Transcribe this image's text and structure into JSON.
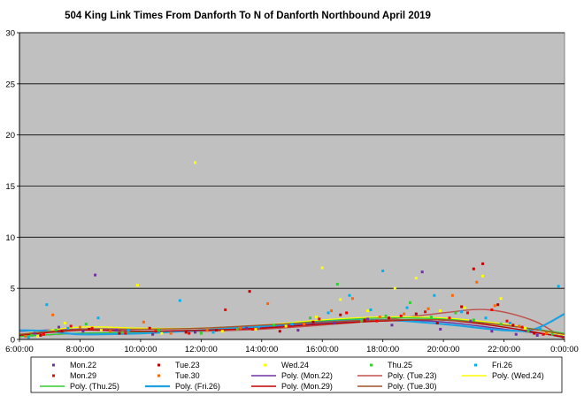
{
  "chart_data": {
    "type": "scatter",
    "title": "504 King Link Times From Danforth  To N of Danforth Northbound  April 2019",
    "xlabel": "",
    "ylabel": "",
    "xlim": [
      6,
      24
    ],
    "ylim": [
      0,
      30
    ],
    "x_ticks": [
      6,
      8,
      10,
      12,
      14,
      16,
      18,
      20,
      22,
      24
    ],
    "x_tick_labels": [
      "6:00:00",
      "8:00:00",
      "10:00:00",
      "12:00:00",
      "14:00:00",
      "16:00:00",
      "18:00:00",
      "20:00:00",
      "22:00:00",
      "0:00:00"
    ],
    "y_ticks": [
      0,
      5,
      10,
      15,
      20,
      25,
      30
    ],
    "y_tick_labels": [
      "0",
      "5",
      "10",
      "15",
      "20",
      "25",
      "30"
    ],
    "grid": "horizontal",
    "plot_background": "#c0c0c0",
    "legend_position": "bottom",
    "series": [
      {
        "name": "Mon.22",
        "kind": "marker",
        "color": "#7030a0",
        "points": [
          [
            6.5,
            0.6
          ],
          [
            7.3,
            1.2
          ],
          [
            8.1,
            0.8
          ],
          [
            8.5,
            6.3
          ],
          [
            9.2,
            0.9
          ],
          [
            10.4,
            0.5
          ],
          [
            11.8,
            0.7
          ],
          [
            13.5,
            1.1
          ],
          [
            15.2,
            0.9
          ],
          [
            16.4,
            1.6
          ],
          [
            17.5,
            2.0
          ],
          [
            18.3,
            1.4
          ],
          [
            19.3,
            6.6
          ],
          [
            19.9,
            1.0
          ],
          [
            20.9,
            1.8
          ],
          [
            21.6,
            0.8
          ],
          [
            22.4,
            0.5
          ],
          [
            23.1,
            0.4
          ]
        ]
      },
      {
        "name": "Tue.23",
        "kind": "marker",
        "color": "#c00000",
        "points": [
          [
            6.7,
            0.4
          ],
          [
            7.4,
            0.8
          ],
          [
            8.3,
            1.0
          ],
          [
            9.3,
            0.6
          ],
          [
            10.3,
            1.1
          ],
          [
            11.5,
            0.7
          ],
          [
            12.5,
            0.9
          ],
          [
            13.6,
            4.7
          ],
          [
            14.6,
            0.8
          ],
          [
            15.7,
            1.7
          ],
          [
            16.6,
            2.4
          ],
          [
            17.4,
            1.9
          ],
          [
            18.2,
            2.1
          ],
          [
            19.1,
            2.5
          ],
          [
            19.8,
            1.6
          ],
          [
            20.6,
            3.2
          ],
          [
            21.0,
            6.9
          ],
          [
            21.3,
            7.4
          ],
          [
            21.8,
            3.4
          ],
          [
            22.3,
            1.4
          ],
          [
            23.0,
            0.6
          ]
        ]
      },
      {
        "name": "Wed.24",
        "kind": "marker",
        "color": "#ffff00",
        "points": [
          [
            6.6,
            0.3
          ],
          [
            7.5,
            1.6
          ],
          [
            8.7,
            0.9
          ],
          [
            9.9,
            5.3
          ],
          [
            10.7,
            0.6
          ],
          [
            11.8,
            17.3
          ],
          [
            12.7,
            0.8
          ],
          [
            13.8,
            1.0
          ],
          [
            14.8,
            1.3
          ],
          [
            15.8,
            2.2
          ],
          [
            16.0,
            7.0
          ],
          [
            16.6,
            3.9
          ],
          [
            17.5,
            2.8
          ],
          [
            18.4,
            5.0
          ],
          [
            19.1,
            6.0
          ],
          [
            19.9,
            2.8
          ],
          [
            20.7,
            3.1
          ],
          [
            21.3,
            6.2
          ],
          [
            21.9,
            4.0
          ],
          [
            22.7,
            1.1
          ]
        ]
      },
      {
        "name": "Thu.25",
        "kind": "marker",
        "color": "#33cc33",
        "points": [
          [
            6.4,
            0.4
          ],
          [
            7.2,
            0.9
          ],
          [
            8.2,
            1.5
          ],
          [
            9.4,
            0.7
          ],
          [
            10.6,
            0.9
          ],
          [
            12.0,
            0.6
          ],
          [
            13.2,
            1.0
          ],
          [
            14.4,
            1.4
          ],
          [
            15.6,
            2.1
          ],
          [
            16.5,
            5.4
          ],
          [
            17.3,
            1.8
          ],
          [
            18.1,
            2.3
          ],
          [
            18.9,
            3.6
          ],
          [
            19.6,
            2.2
          ],
          [
            20.4,
            2.6
          ],
          [
            21.0,
            1.9
          ],
          [
            21.9,
            1.5
          ],
          [
            22.8,
            0.8
          ],
          [
            23.6,
            0.5
          ]
        ]
      },
      {
        "name": "Fri.26",
        "kind": "marker",
        "color": "#00b0f0",
        "points": [
          [
            6.3,
            0.2
          ],
          [
            6.9,
            3.4
          ],
          [
            7.6,
            1.1
          ],
          [
            8.6,
            2.1
          ],
          [
            9.6,
            0.9
          ],
          [
            11.3,
            3.8
          ],
          [
            12.4,
            0.7
          ],
          [
            13.9,
            1.2
          ],
          [
            15.0,
            1.5
          ],
          [
            16.2,
            2.6
          ],
          [
            16.9,
            4.3
          ],
          [
            17.6,
            2.9
          ],
          [
            18.0,
            6.7
          ],
          [
            18.8,
            3.1
          ],
          [
            19.7,
            4.3
          ],
          [
            20.6,
            2.7
          ],
          [
            21.4,
            2.1
          ],
          [
            22.2,
            1.6
          ],
          [
            23.2,
            1.0
          ],
          [
            23.8,
            5.2
          ]
        ]
      },
      {
        "name": "Mon.29",
        "kind": "marker",
        "color": "#ff0000",
        "points": [
          [
            6.8,
            0.5
          ],
          [
            7.7,
            1.3
          ],
          [
            8.4,
            1.1
          ],
          [
            9.5,
            0.6
          ],
          [
            10.5,
            0.8
          ],
          [
            11.6,
            0.6
          ],
          [
            12.8,
            2.9
          ],
          [
            13.7,
            1.0
          ],
          [
            14.9,
            1.3
          ],
          [
            15.9,
            2.0
          ],
          [
            16.8,
            2.6
          ],
          [
            17.8,
            1.8
          ],
          [
            18.6,
            2.3
          ],
          [
            19.4,
            2.7
          ],
          [
            20.2,
            2.1
          ],
          [
            20.8,
            2.6
          ],
          [
            21.6,
            2.9
          ],
          [
            22.1,
            1.8
          ],
          [
            22.6,
            1.2
          ],
          [
            23.3,
            0.5
          ]
        ]
      },
      {
        "name": "Tue.30",
        "kind": "marker",
        "color": "#ff6600",
        "points": [
          [
            6.2,
            0.3
          ],
          [
            7.1,
            2.4
          ],
          [
            8.0,
            1.2
          ],
          [
            9.0,
            0.8
          ],
          [
            10.1,
            1.7
          ],
          [
            11.0,
            0.6
          ],
          [
            12.2,
            0.9
          ],
          [
            13.3,
            1.1
          ],
          [
            14.2,
            3.5
          ],
          [
            15.4,
            1.5
          ],
          [
            16.3,
            2.8
          ],
          [
            17.0,
            4.0
          ],
          [
            17.9,
            2.2
          ],
          [
            18.7,
            2.5
          ],
          [
            19.5,
            3.0
          ],
          [
            20.3,
            4.3
          ],
          [
            21.1,
            5.6
          ],
          [
            21.7,
            3.3
          ],
          [
            22.5,
            1.3
          ],
          [
            23.4,
            0.6
          ]
        ]
      },
      {
        "name": "Poly. (Mon.22)",
        "kind": "trend",
        "color": "#7030a0",
        "points": [
          [
            6,
            0.8
          ],
          [
            8,
            1.0
          ],
          [
            10,
            0.8
          ],
          [
            12,
            0.9
          ],
          [
            14,
            1.2
          ],
          [
            16,
            1.6
          ],
          [
            18,
            1.9
          ],
          [
            20,
            1.7
          ],
          [
            22,
            1.0
          ],
          [
            24,
            0.3
          ]
        ]
      },
      {
        "name": "Poly. (Tue.23)",
        "kind": "trend",
        "color": "#c0504d",
        "points": [
          [
            6,
            0.3
          ],
          [
            8,
            0.6
          ],
          [
            10,
            0.7
          ],
          [
            12,
            0.8
          ],
          [
            14,
            1.0
          ],
          [
            16,
            1.4
          ],
          [
            18,
            1.9
          ],
          [
            20,
            2.6
          ],
          [
            21.5,
            2.9
          ],
          [
            23,
            1.8
          ],
          [
            24,
            0.0
          ]
        ]
      },
      {
        "name": "Poly. (Wed.24)",
        "kind": "trend",
        "color": "#ffff00",
        "points": [
          [
            6,
            0.5
          ],
          [
            8,
            1.2
          ],
          [
            10,
            1.1
          ],
          [
            12,
            1.1
          ],
          [
            14,
            1.4
          ],
          [
            16,
            1.9
          ],
          [
            18,
            2.2
          ],
          [
            20,
            2.1
          ],
          [
            22,
            1.5
          ],
          [
            24,
            0.4
          ]
        ]
      },
      {
        "name": "Poly. (Thu.25)",
        "kind": "trend",
        "color": "#33cc33",
        "points": [
          [
            6,
            0.3
          ],
          [
            8,
            0.6
          ],
          [
            10,
            0.7
          ],
          [
            12,
            0.9
          ],
          [
            14,
            1.3
          ],
          [
            16,
            1.8
          ],
          [
            18,
            2.1
          ],
          [
            20,
            2.0
          ],
          [
            22,
            1.4
          ],
          [
            24,
            0.6
          ]
        ]
      },
      {
        "name": "Poly. (Fri.26)",
        "kind": "trend",
        "color": "#1fa0e0",
        "points": [
          [
            6,
            0.9
          ],
          [
            7,
            0.8
          ],
          [
            8,
            0.5
          ],
          [
            10,
            0.6
          ],
          [
            12,
            0.9
          ],
          [
            14,
            1.3
          ],
          [
            16,
            1.7
          ],
          [
            18,
            1.9
          ],
          [
            20,
            1.5
          ],
          [
            22,
            0.9
          ],
          [
            23,
            1.0
          ],
          [
            24,
            2.5
          ]
        ]
      },
      {
        "name": "Poly. (Mon.29)",
        "kind": "trend",
        "color": "#c00000",
        "points": [
          [
            6,
            0.4
          ],
          [
            8,
            0.9
          ],
          [
            10,
            0.8
          ],
          [
            12,
            0.9
          ],
          [
            14,
            1.1
          ],
          [
            16,
            1.5
          ],
          [
            18,
            1.8
          ],
          [
            20,
            1.9
          ],
          [
            22,
            1.2
          ],
          [
            24,
            0.2
          ]
        ]
      },
      {
        "name": "Poly. (Tue.30)",
        "kind": "trend",
        "color": "#a0522d",
        "points": [
          [
            6,
            0.5
          ],
          [
            8,
            1.0
          ],
          [
            10,
            1.0
          ],
          [
            12,
            1.1
          ],
          [
            14,
            1.4
          ],
          [
            16,
            1.7
          ],
          [
            18,
            1.9
          ],
          [
            20,
            1.9
          ],
          [
            22,
            1.4
          ],
          [
            24,
            0.5
          ]
        ]
      }
    ]
  }
}
